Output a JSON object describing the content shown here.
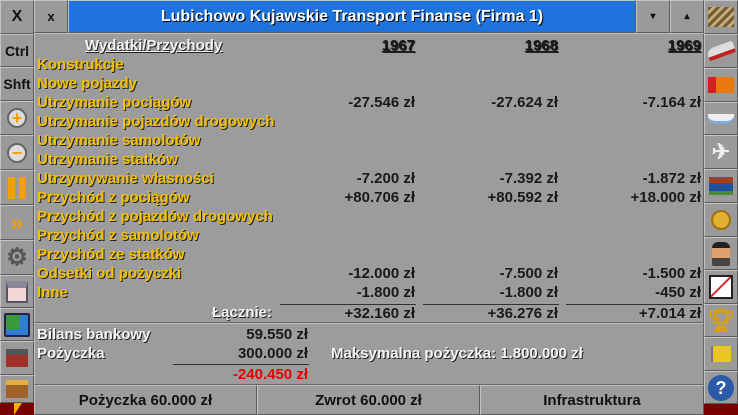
{
  "left_toolbar": {
    "close": "X",
    "ctrl": "Ctrl",
    "shift": "Shft"
  },
  "window": {
    "close": "x",
    "title": "Lubichowo Kujawskie Transport Finanse (Firma 1)",
    "shade": "▾",
    "pin": "▴"
  },
  "table": {
    "header": "Wydatki/Przychody",
    "years": [
      "1967",
      "1968",
      "1969"
    ],
    "rows": [
      {
        "label": "Konstrukcje",
        "values": [
          "",
          "",
          ""
        ]
      },
      {
        "label": "Nowe pojazdy",
        "values": [
          "",
          "",
          ""
        ]
      },
      {
        "label": "Utrzymanie pociągów",
        "values": [
          "-27.546 zł",
          "-27.624 zł",
          "-7.164 zł"
        ]
      },
      {
        "label": "Utrzymanie pojazdów drogowych",
        "values": [
          "",
          "",
          ""
        ]
      },
      {
        "label": "Utrzymanie samolotów",
        "values": [
          "",
          "",
          ""
        ]
      },
      {
        "label": "Utrzymanie statków",
        "values": [
          "",
          "",
          ""
        ]
      },
      {
        "label": "Utrzymywanie własności",
        "values": [
          "-7.200 zł",
          "-7.392 zł",
          "-1.872 zł"
        ]
      },
      {
        "label": "Przychód z pociągów",
        "values": [
          "+80.706 zł",
          "+80.592 zł",
          "+18.000 zł"
        ]
      },
      {
        "label": "Przychód z pojazdów drogowych",
        "values": [
          "",
          "",
          ""
        ]
      },
      {
        "label": "Przychód z samolotów",
        "values": [
          "",
          "",
          ""
        ]
      },
      {
        "label": "Przychód ze statków",
        "values": [
          "",
          "",
          ""
        ]
      },
      {
        "label": "Odsetki od pożyczki",
        "values": [
          "-12.000 zł",
          "-7.500 zł",
          "-1.500 zł"
        ]
      },
      {
        "label": "Inne",
        "values": [
          "-1.800 zł",
          "-1.800 zł",
          "-450 zł"
        ]
      }
    ],
    "total_label": "Łącznie:",
    "totals": [
      "+32.160 zł",
      "+36.276 zł",
      "+7.014 zł"
    ]
  },
  "summary": {
    "bank_label": "Bilans bankowy",
    "bank_value": "59.550 zł",
    "loan_label": "Pożyczka",
    "loan_value": "300.000 zł",
    "net_value": "-240.450 zł",
    "max_loan": "Maksymalna pożyczka: 1.800.000 zł"
  },
  "buttons": {
    "borrow": "Pożyczka 60.000 zł",
    "repay": "Zwrot 60.000 zł",
    "infrastructure": "Infrastruktura"
  },
  "colors": {
    "title_bar": "#1f73dc",
    "label": "#f4c000",
    "negative_net": "#e80000"
  }
}
